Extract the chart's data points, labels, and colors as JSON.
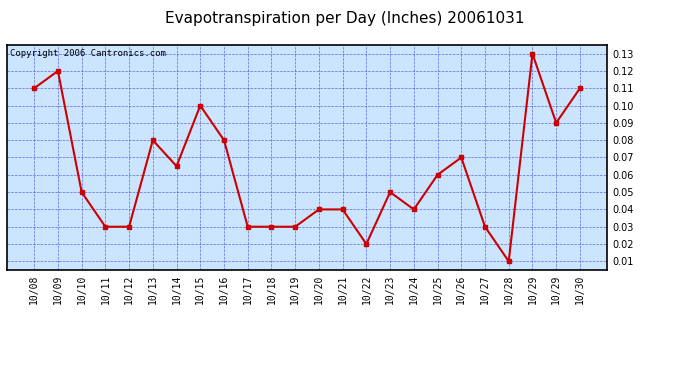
{
  "title": "Evapotranspiration per Day (Inches) 20061031",
  "copyright_text": "Copyright 2006 Cantronics.com",
  "x_labels": [
    "10/08",
    "10/09",
    "10/10",
    "10/11",
    "10/12",
    "10/13",
    "10/14",
    "10/15",
    "10/16",
    "10/17",
    "10/18",
    "10/19",
    "10/20",
    "10/21",
    "10/22",
    "10/23",
    "10/24",
    "10/25",
    "10/26",
    "10/27",
    "10/28",
    "10/29",
    "10/29",
    "10/30"
  ],
  "y_values": [
    0.11,
    0.12,
    0.05,
    0.03,
    0.03,
    0.08,
    0.065,
    0.1,
    0.08,
    0.03,
    0.03,
    0.03,
    0.04,
    0.04,
    0.02,
    0.05,
    0.04,
    0.06,
    0.07,
    0.03,
    0.01,
    0.13,
    0.09,
    0.11
  ],
  "ylim": [
    0.005,
    0.135
  ],
  "yticks": [
    0.01,
    0.02,
    0.03,
    0.04,
    0.05,
    0.06,
    0.07,
    0.08,
    0.09,
    0.1,
    0.11,
    0.12,
    0.13
  ],
  "line_color": "#cc0000",
  "marker_color": "#cc0000",
  "marker": "s",
  "marker_size": 3,
  "fig_bg_color": "#ffffff",
  "plot_bg_color": "#cce5ff",
  "grid_color": "#3333cc",
  "title_fontsize": 11,
  "tick_fontsize": 7,
  "copyright_fontsize": 6.5
}
